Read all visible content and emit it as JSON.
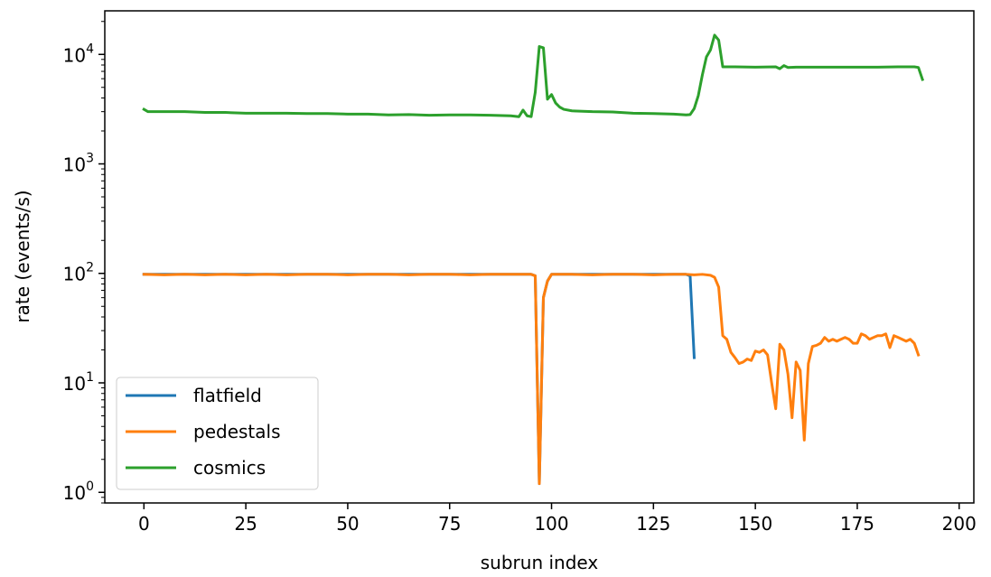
{
  "chart_data": {
    "type": "line",
    "xlabel": "subrun index",
    "ylabel": "rate (events/s)",
    "yscale": "log",
    "xlim": [
      -9.6,
      203.6
    ],
    "ylim": [
      0.8,
      25000
    ],
    "x_ticks": [
      0,
      25,
      50,
      75,
      100,
      125,
      150,
      175,
      200
    ],
    "y_ticks": [
      {
        "value": 1,
        "base": "10",
        "exp": "0"
      },
      {
        "value": 10,
        "base": "10",
        "exp": "1"
      },
      {
        "value": 100,
        "base": "10",
        "exp": "2"
      },
      {
        "value": 1000,
        "base": "10",
        "exp": "3"
      },
      {
        "value": 10000,
        "base": "10",
        "exp": "4"
      }
    ],
    "grid": false,
    "legend_position": "lower-left",
    "series": [
      {
        "name": "flatfield",
        "color": "#1f77b4",
        "points": [
          [
            0,
            98
          ],
          [
            10,
            98
          ],
          [
            20,
            98
          ],
          [
            30,
            98
          ],
          [
            40,
            98
          ],
          [
            50,
            98
          ],
          [
            60,
            98
          ],
          [
            70,
            98
          ],
          [
            80,
            98
          ],
          [
            90,
            98
          ],
          [
            95,
            98
          ],
          [
            96,
            95
          ],
          [
            97,
            1.2
          ],
          [
            98,
            60
          ],
          [
            99,
            85
          ],
          [
            100,
            98
          ],
          [
            110,
            98
          ],
          [
            120,
            98
          ],
          [
            130,
            98
          ],
          [
            133,
            98
          ],
          [
            134,
            95
          ],
          [
            135,
            17
          ]
        ]
      },
      {
        "name": "pedestals",
        "color": "#ff7f0e",
        "points": [
          [
            0,
            98
          ],
          [
            5,
            97
          ],
          [
            10,
            98
          ],
          [
            15,
            97
          ],
          [
            20,
            98
          ],
          [
            25,
            97
          ],
          [
            30,
            98
          ],
          [
            35,
            97
          ],
          [
            40,
            98
          ],
          [
            45,
            98
          ],
          [
            50,
            97
          ],
          [
            55,
            98
          ],
          [
            60,
            98
          ],
          [
            65,
            97
          ],
          [
            70,
            98
          ],
          [
            75,
            98
          ],
          [
            80,
            97
          ],
          [
            85,
            98
          ],
          [
            90,
            98
          ],
          [
            93,
            98
          ],
          [
            95,
            98
          ],
          [
            96,
            95
          ],
          [
            97,
            1.2
          ],
          [
            98,
            60
          ],
          [
            99,
            85
          ],
          [
            100,
            98
          ],
          [
            105,
            98
          ],
          [
            110,
            97
          ],
          [
            115,
            98
          ],
          [
            120,
            98
          ],
          [
            125,
            97
          ],
          [
            130,
            98
          ],
          [
            133,
            98
          ],
          [
            135,
            97
          ],
          [
            137,
            98
          ],
          [
            139,
            96
          ],
          [
            140,
            92
          ],
          [
            141,
            75
          ],
          [
            142,
            27
          ],
          [
            143,
            25
          ],
          [
            144,
            19
          ],
          [
            145,
            17
          ],
          [
            146,
            15
          ],
          [
            147,
            15.5
          ],
          [
            148,
            16.5
          ],
          [
            149,
            16
          ],
          [
            150,
            19.5
          ],
          [
            151,
            19
          ],
          [
            152,
            20
          ],
          [
            153,
            18
          ],
          [
            154,
            10
          ],
          [
            155,
            5.8
          ],
          [
            156,
            22.5
          ],
          [
            157,
            20
          ],
          [
            158,
            12
          ],
          [
            159,
            4.8
          ],
          [
            160,
            15.5
          ],
          [
            161,
            13
          ],
          [
            162,
            3
          ],
          [
            163,
            15
          ],
          [
            164,
            21.5
          ],
          [
            165,
            22
          ],
          [
            166,
            23
          ],
          [
            167,
            26
          ],
          [
            168,
            24
          ],
          [
            169,
            25
          ],
          [
            170,
            24
          ],
          [
            171,
            25
          ],
          [
            172,
            26
          ],
          [
            173,
            25
          ],
          [
            174,
            23
          ],
          [
            175,
            23
          ],
          [
            176,
            28
          ],
          [
            177,
            27
          ],
          [
            178,
            25
          ],
          [
            179,
            26
          ],
          [
            180,
            27
          ],
          [
            181,
            27
          ],
          [
            182,
            28
          ],
          [
            183,
            21
          ],
          [
            184,
            27
          ],
          [
            185,
            26
          ],
          [
            186,
            25
          ],
          [
            187,
            24
          ],
          [
            188,
            25
          ],
          [
            189,
            23
          ],
          [
            190,
            18
          ]
        ]
      },
      {
        "name": "cosmics",
        "color": "#2ca02c",
        "points": [
          [
            0,
            3150
          ],
          [
            1,
            3000
          ],
          [
            5,
            3000
          ],
          [
            10,
            3000
          ],
          [
            15,
            2950
          ],
          [
            20,
            2950
          ],
          [
            25,
            2900
          ],
          [
            30,
            2900
          ],
          [
            35,
            2900
          ],
          [
            40,
            2880
          ],
          [
            45,
            2880
          ],
          [
            50,
            2850
          ],
          [
            55,
            2850
          ],
          [
            60,
            2800
          ],
          [
            65,
            2820
          ],
          [
            70,
            2780
          ],
          [
            75,
            2800
          ],
          [
            80,
            2800
          ],
          [
            85,
            2780
          ],
          [
            90,
            2750
          ],
          [
            92,
            2700
          ],
          [
            93,
            3100
          ],
          [
            94,
            2750
          ],
          [
            95,
            2700
          ],
          [
            96,
            4500
          ],
          [
            97,
            11800
          ],
          [
            98,
            11500
          ],
          [
            99,
            3900
          ],
          [
            100,
            4300
          ],
          [
            101,
            3600
          ],
          [
            102,
            3300
          ],
          [
            103,
            3150
          ],
          [
            105,
            3050
          ],
          [
            110,
            3000
          ],
          [
            115,
            2980
          ],
          [
            120,
            2900
          ],
          [
            125,
            2880
          ],
          [
            130,
            2850
          ],
          [
            133,
            2800
          ],
          [
            134,
            2820
          ],
          [
            135,
            3200
          ],
          [
            136,
            4200
          ],
          [
            137,
            6500
          ],
          [
            138,
            9500
          ],
          [
            139,
            11000
          ],
          [
            140,
            15000
          ],
          [
            141,
            13500
          ],
          [
            142,
            7700
          ],
          [
            145,
            7700
          ],
          [
            150,
            7650
          ],
          [
            155,
            7700
          ],
          [
            156,
            7400
          ],
          [
            157,
            7900
          ],
          [
            158,
            7600
          ],
          [
            160,
            7650
          ],
          [
            165,
            7650
          ],
          [
            170,
            7650
          ],
          [
            175,
            7650
          ],
          [
            180,
            7650
          ],
          [
            185,
            7700
          ],
          [
            189,
            7700
          ],
          [
            190,
            7600
          ],
          [
            191,
            5900
          ]
        ]
      }
    ]
  }
}
